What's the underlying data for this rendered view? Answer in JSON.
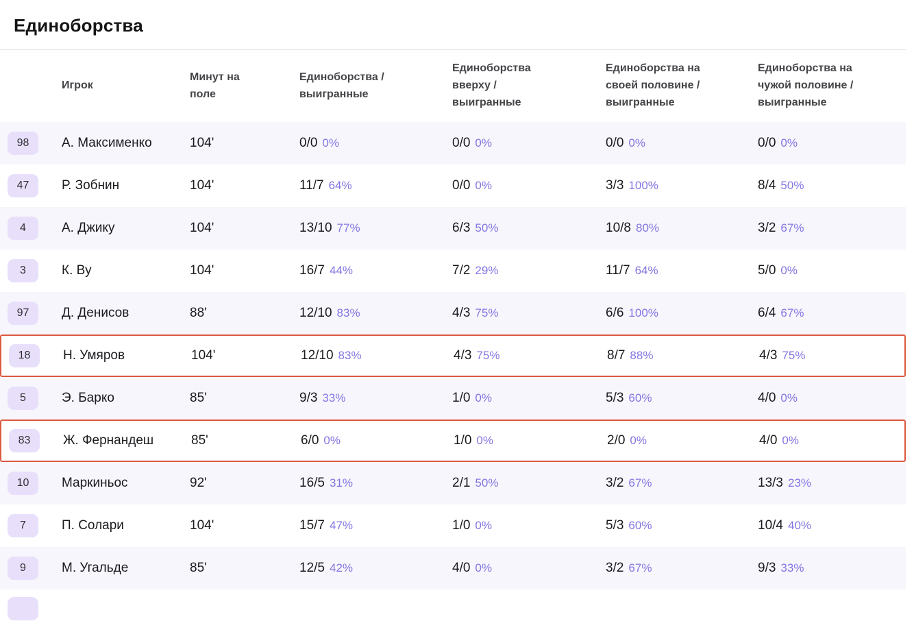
{
  "title": "Единоборства",
  "table": {
    "headers": [
      "Игрок",
      "Минут на поле",
      "Единоборства / выигранные",
      "Единоборства вверху / выигранные",
      "Единоборства на своей половине / выигранные",
      "Единоборства на чужой половине / выигранные"
    ],
    "rows": [
      {
        "number": "98",
        "player": "А. Максименко",
        "minutes": "104'",
        "duels": "0/0",
        "duels_pct": "0%",
        "aerial": "0/0",
        "aerial_pct": "0%",
        "own": "0/0",
        "own_pct": "0%",
        "opp": "0/0",
        "opp_pct": "0%",
        "highlighted": false
      },
      {
        "number": "47",
        "player": "Р. Зобнин",
        "minutes": "104'",
        "duels": "11/7",
        "duels_pct": "64%",
        "aerial": "0/0",
        "aerial_pct": "0%",
        "own": "3/3",
        "own_pct": "100%",
        "opp": "8/4",
        "opp_pct": "50%",
        "highlighted": false
      },
      {
        "number": "4",
        "player": "А. Джику",
        "minutes": "104'",
        "duels": "13/10",
        "duels_pct": "77%",
        "aerial": "6/3",
        "aerial_pct": "50%",
        "own": "10/8",
        "own_pct": "80%",
        "opp": "3/2",
        "opp_pct": "67%",
        "highlighted": false
      },
      {
        "number": "3",
        "player": "К. Ву",
        "minutes": "104'",
        "duels": "16/7",
        "duels_pct": "44%",
        "aerial": "7/2",
        "aerial_pct": "29%",
        "own": "11/7",
        "own_pct": "64%",
        "opp": "5/0",
        "opp_pct": "0%",
        "highlighted": false
      },
      {
        "number": "97",
        "player": "Д. Денисов",
        "minutes": "88'",
        "duels": "12/10",
        "duels_pct": "83%",
        "aerial": "4/3",
        "aerial_pct": "75%",
        "own": "6/6",
        "own_pct": "100%",
        "opp": "6/4",
        "opp_pct": "67%",
        "highlighted": false
      },
      {
        "number": "18",
        "player": "Н. Умяров",
        "minutes": "104'",
        "duels": "12/10",
        "duels_pct": "83%",
        "aerial": "4/3",
        "aerial_pct": "75%",
        "own": "8/7",
        "own_pct": "88%",
        "opp": "4/3",
        "opp_pct": "75%",
        "highlighted": true
      },
      {
        "number": "5",
        "player": "Э. Барко",
        "minutes": "85'",
        "duels": "9/3",
        "duels_pct": "33%",
        "aerial": "1/0",
        "aerial_pct": "0%",
        "own": "5/3",
        "own_pct": "60%",
        "opp": "4/0",
        "opp_pct": "0%",
        "highlighted": false
      },
      {
        "number": "83",
        "player": "Ж. Фернандеш",
        "minutes": "85'",
        "duels": "6/0",
        "duels_pct": "0%",
        "aerial": "1/0",
        "aerial_pct": "0%",
        "own": "2/0",
        "own_pct": "0%",
        "opp": "4/0",
        "opp_pct": "0%",
        "highlighted": true
      },
      {
        "number": "10",
        "player": "Маркиньос",
        "minutes": "92'",
        "duels": "16/5",
        "duels_pct": "31%",
        "aerial": "2/1",
        "aerial_pct": "50%",
        "own": "3/2",
        "own_pct": "67%",
        "opp": "13/3",
        "opp_pct": "23%",
        "highlighted": false
      },
      {
        "number": "7",
        "player": "П. Солари",
        "minutes": "104'",
        "duels": "15/7",
        "duels_pct": "47%",
        "aerial": "1/0",
        "aerial_pct": "0%",
        "own": "5/3",
        "own_pct": "60%",
        "opp": "10/4",
        "opp_pct": "40%",
        "highlighted": false
      },
      {
        "number": "9",
        "player": "М. Угальде",
        "minutes": "85'",
        "duels": "12/5",
        "duels_pct": "42%",
        "aerial": "4/0",
        "aerial_pct": "0%",
        "own": "3/2",
        "own_pct": "67%",
        "opp": "9/3",
        "opp_pct": "33%",
        "highlighted": false
      }
    ]
  },
  "colors": {
    "percent_text": "#8276e2",
    "badge_bg": "#e8e0fb",
    "highlight_border": "#dc5740",
    "row_alt_bg": "#f7f6fc"
  }
}
